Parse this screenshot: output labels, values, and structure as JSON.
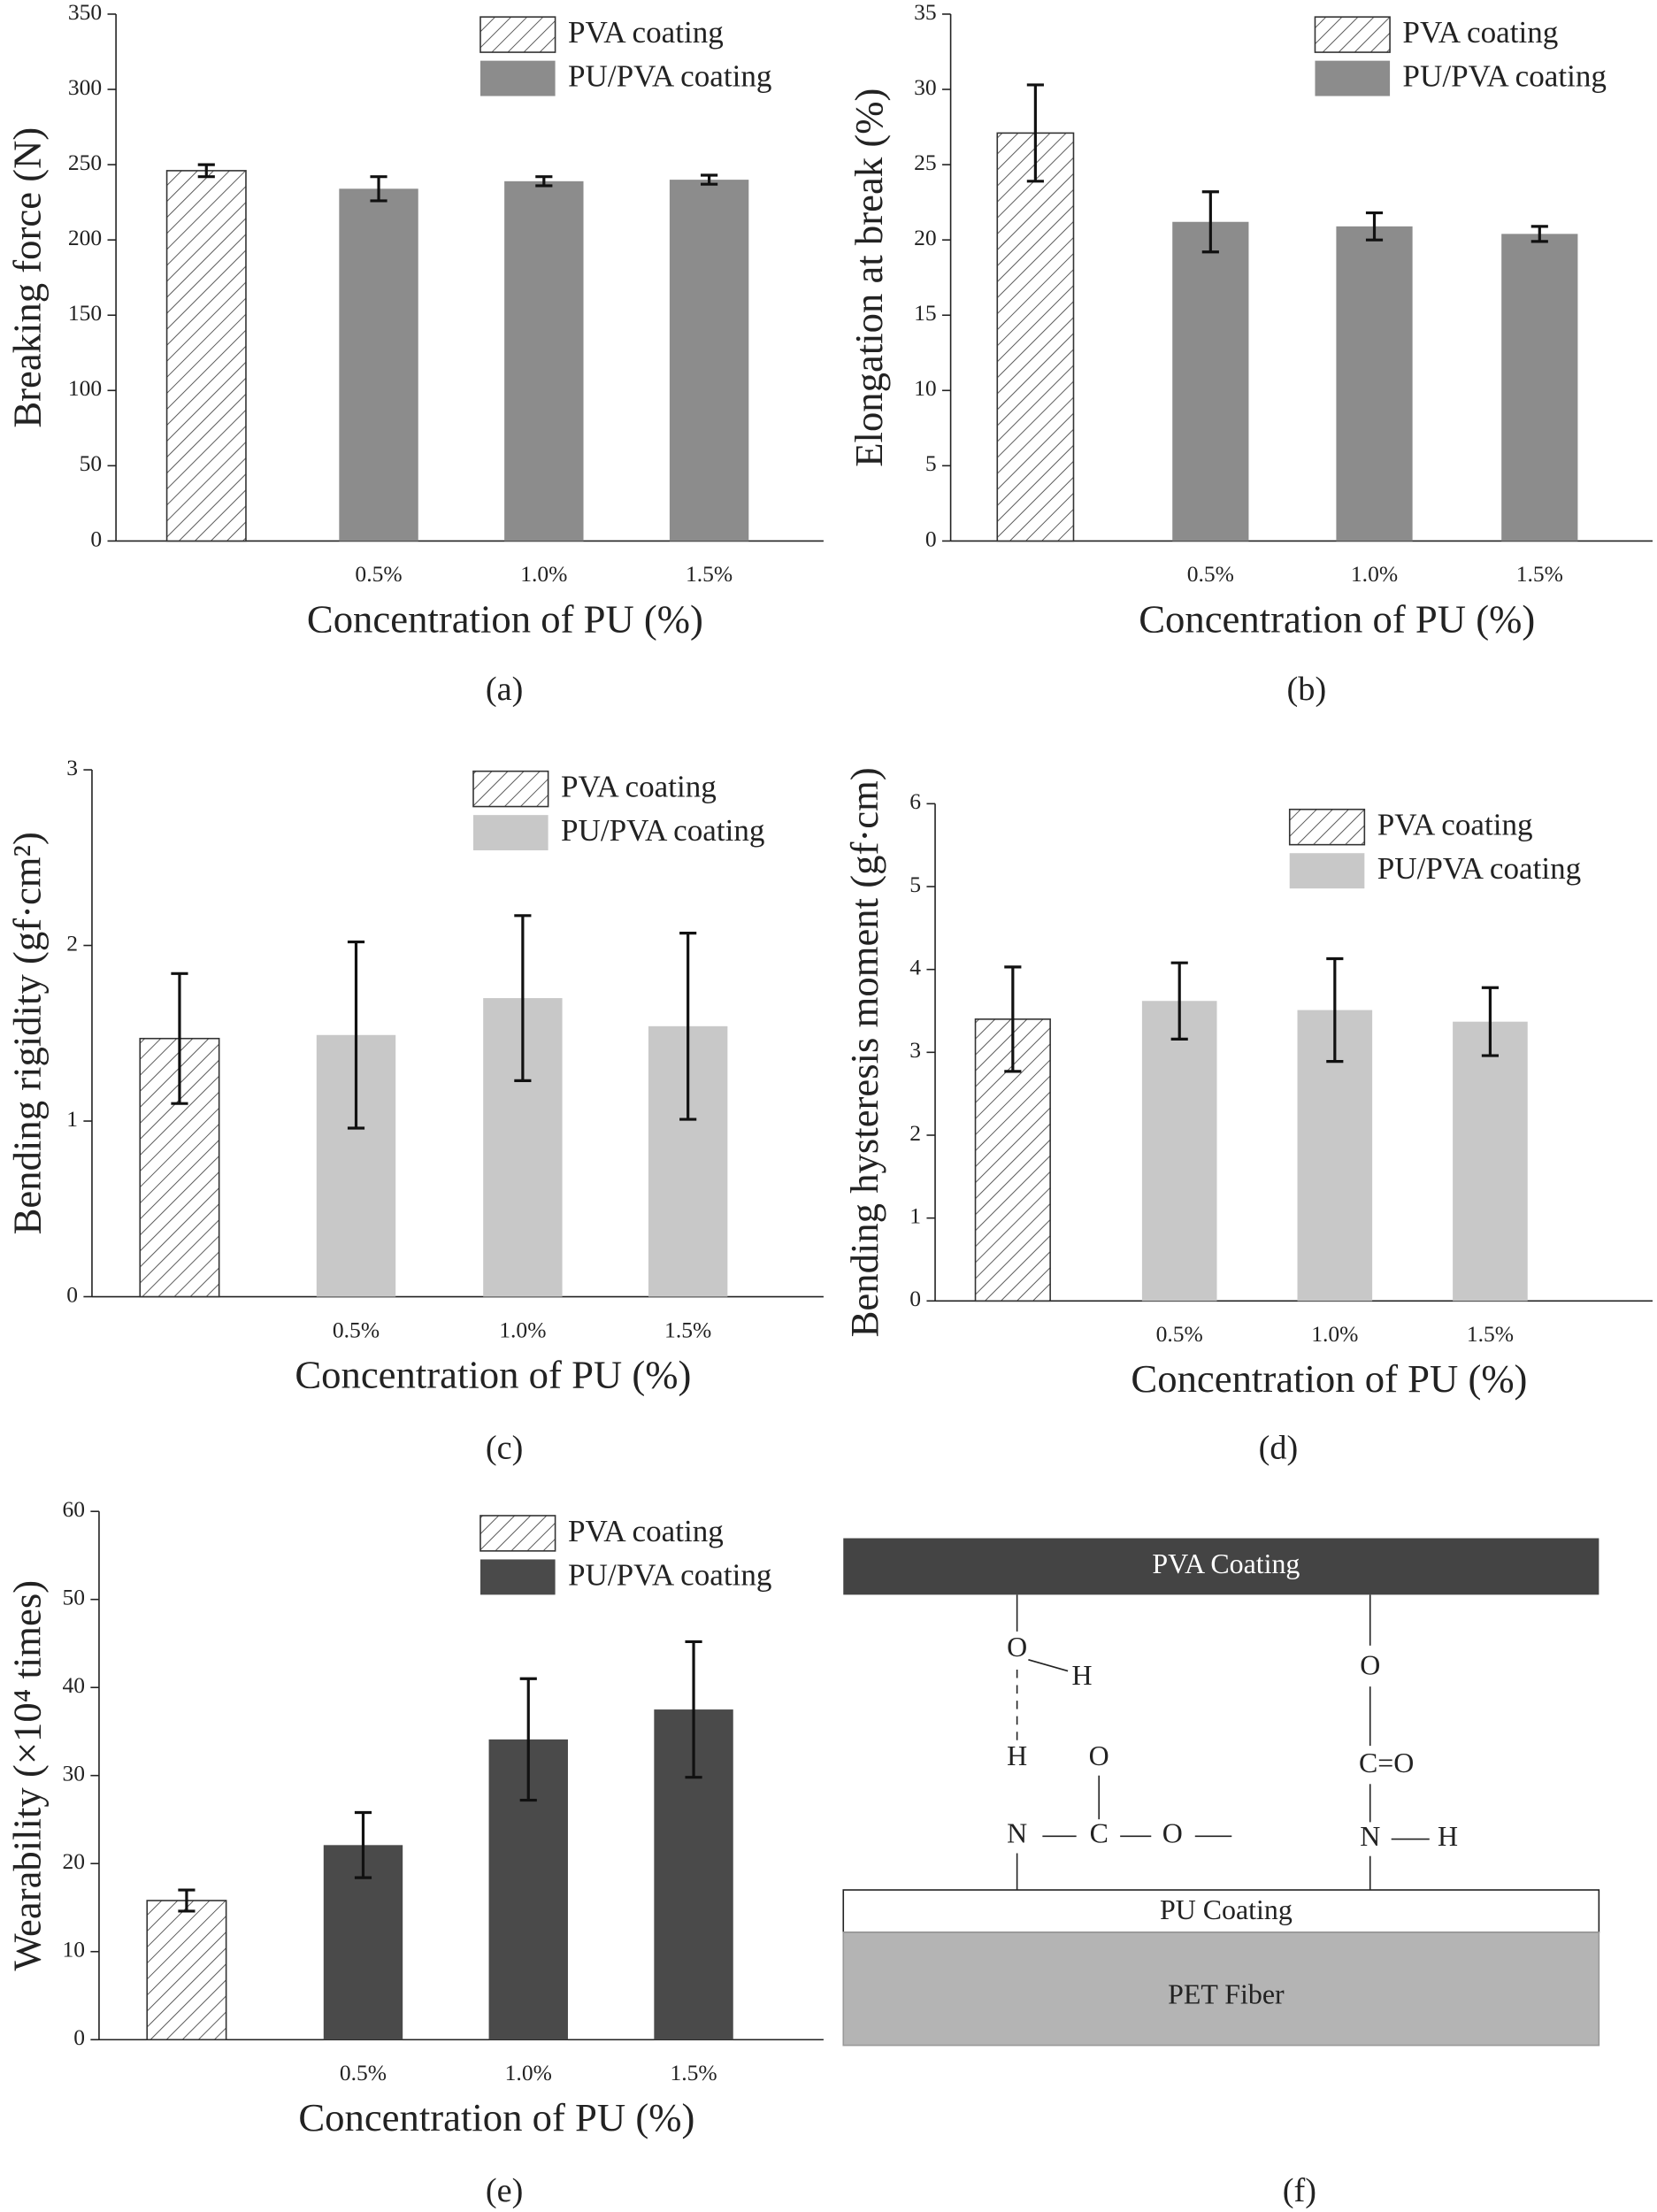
{
  "chart_data": [
    {
      "type": "bar",
      "caption": "(a)",
      "ylabel": "Breaking force (N)",
      "xlabel": "Concentration of PU (%)",
      "categories": [
        null,
        "0.5%",
        "1.0%",
        "1.5%"
      ],
      "series": [
        {
          "name": "PVA coating",
          "color": "#ffffff",
          "hatch": true,
          "values": [
            246,
            null,
            null,
            null
          ],
          "errors": [
            4,
            null,
            null,
            null
          ]
        },
        {
          "name": "PU/PVA coating",
          "color": "#8c8c8c",
          "values": [
            null,
            234,
            239,
            240
          ],
          "errors": [
            null,
            8,
            3,
            3
          ]
        }
      ],
      "ylim": [
        0,
        350
      ],
      "yticks": [
        0,
        50,
        100,
        150,
        200,
        250,
        300,
        350
      ],
      "grid": false
    },
    {
      "type": "bar",
      "caption": "(b)",
      "ylabel": "Elongation at break (%)",
      "xlabel": "Concentration of PU (%)",
      "categories": [
        null,
        "0.5%",
        "1.0%",
        "1.5%"
      ],
      "series": [
        {
          "name": "PVA coating",
          "color": "#ffffff",
          "hatch": true,
          "values": [
            27.1,
            null,
            null,
            null
          ],
          "errors": [
            3.2,
            null,
            null,
            null
          ]
        },
        {
          "name": "PU/PVA coating",
          "color": "#8c8c8c",
          "values": [
            null,
            21.2,
            20.9,
            20.4
          ],
          "errors": [
            null,
            2.0,
            0.9,
            0.5
          ]
        }
      ],
      "ylim": [
        0,
        35
      ],
      "yticks": [
        0,
        5,
        10,
        15,
        20,
        25,
        30,
        35
      ],
      "grid": false
    },
    {
      "type": "bar",
      "caption": "(c)",
      "ylabel": "Bending rigidity (gf·cm²)",
      "xlabel": "Concentration of PU (%)",
      "categories": [
        null,
        "0.5%",
        "1.0%",
        "1.5%"
      ],
      "series": [
        {
          "name": "PVA coating",
          "color": "#ffffff",
          "hatch": true,
          "values": [
            1.47,
            null,
            null,
            null
          ],
          "errors": [
            0.37,
            null,
            null,
            null
          ]
        },
        {
          "name": "PU/PVA coating",
          "color": "#c8c8c8",
          "values": [
            null,
            1.49,
            1.7,
            1.54
          ],
          "errors": [
            null,
            0.53,
            0.47,
            0.53
          ]
        }
      ],
      "ylim": [
        0,
        3
      ],
      "yticks": [
        0,
        1,
        2,
        3
      ],
      "grid": false
    },
    {
      "type": "bar",
      "caption": "(d)",
      "ylabel": "Bending hysteresis moment (gf·cm)",
      "xlabel": "Concentration of PU (%)",
      "categories": [
        null,
        "0.5%",
        "1.0%",
        "1.5%"
      ],
      "series": [
        {
          "name": "PVA coating",
          "color": "#ffffff",
          "hatch": true,
          "values": [
            3.4,
            null,
            null,
            null
          ],
          "errors": [
            0.63,
            null,
            null,
            null
          ]
        },
        {
          "name": "PU/PVA coating",
          "color": "#c8c8c8",
          "values": [
            null,
            3.62,
            3.51,
            3.37
          ],
          "errors": [
            null,
            0.46,
            0.62,
            0.41
          ]
        }
      ],
      "ylim": [
        0,
        6
      ],
      "yticks": [
        0,
        1,
        2,
        3,
        4,
        5,
        6
      ],
      "grid": false
    },
    {
      "type": "bar",
      "caption": "(e)",
      "ylabel": "Wearability (×10⁴ times)",
      "xlabel": "Concentration of PU (%)",
      "categories": [
        null,
        "0.5%",
        "1.0%",
        "1.5%"
      ],
      "series": [
        {
          "name": "PVA coating",
          "color": "#ffffff",
          "hatch": true,
          "values": [
            15.8,
            null,
            null,
            null
          ],
          "errors": [
            1.2,
            null,
            null,
            null
          ]
        },
        {
          "name": "PU/PVA coating",
          "color": "#4a4a4a",
          "values": [
            null,
            22.1,
            34.1,
            37.5
          ],
          "errors": [
            null,
            3.7,
            6.9,
            7.7
          ]
        }
      ],
      "ylim": [
        0,
        60
      ],
      "yticks": [
        0,
        10,
        20,
        30,
        40,
        50,
        60
      ],
      "grid": false
    }
  ],
  "diagram": {
    "caption": "(f)",
    "layers": [
      "PVA Coating",
      "PU Coating",
      "PET Fiber"
    ],
    "atoms": [
      "O",
      "H",
      "H",
      "N",
      "C",
      "O",
      "O",
      "O",
      "C=O",
      "N",
      "H"
    ]
  }
}
